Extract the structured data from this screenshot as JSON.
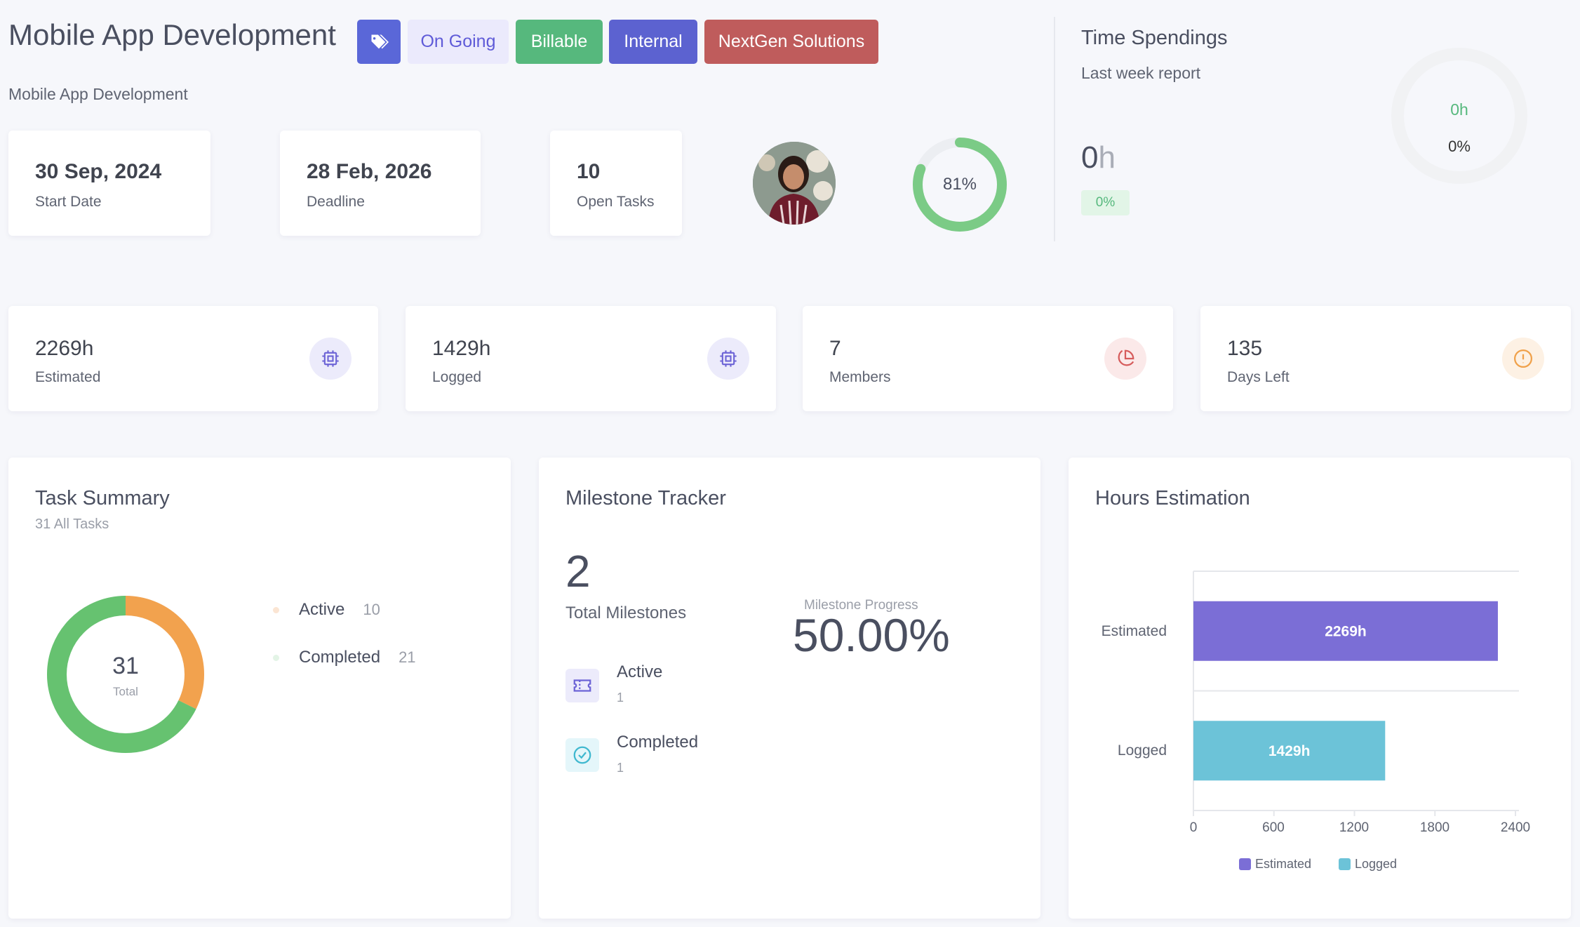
{
  "header": {
    "title": "Mobile App Development",
    "subtitle": "Mobile App Development",
    "tags": [
      "On Going",
      "Billable",
      "Internal",
      "NextGen Solutions"
    ]
  },
  "info_cards": [
    {
      "value": "30 Sep, 2024",
      "label": "Start Date"
    },
    {
      "value": "28 Feb, 2026",
      "label": "Deadline"
    },
    {
      "value": "10",
      "label": "Open Tasks"
    }
  ],
  "progress": {
    "value": 0.81,
    "text": "81%"
  },
  "time_spendings": {
    "title": "Time Spendings",
    "subtitle": "Last week report",
    "value_num": "0",
    "value_unit": "h",
    "badge": "0%",
    "ring_hours": "0h",
    "ring_percent": "0%"
  },
  "stats": [
    {
      "value": "2269h",
      "label": "Estimated",
      "icon": "cpu-icon",
      "color": "#6c63d6",
      "bg": "#ecebfb"
    },
    {
      "value": "1429h",
      "label": "Logged",
      "icon": "cpu-icon",
      "color": "#6c63d6",
      "bg": "#ecebfb"
    },
    {
      "value": "7",
      "label": "Members",
      "icon": "pie-chart-icon",
      "color": "#d65c5c",
      "bg": "#fbe9e9"
    },
    {
      "value": "135",
      "label": "Days Left",
      "icon": "alert-circle-icon",
      "color": "#f0a14a",
      "bg": "#fdf1e4"
    }
  ],
  "task_summary": {
    "title": "Task Summary",
    "subtitle": "31 All Tasks",
    "total": "31",
    "total_label": "Total",
    "items": [
      {
        "name": "Active",
        "count": "10",
        "value": 10,
        "color": "#f2a24e",
        "dot": "#fbe5d3"
      },
      {
        "name": "Completed",
        "count": "21",
        "value": 21,
        "color": "#66c270",
        "dot": "#e3f4e6"
      }
    ]
  },
  "milestones": {
    "title": "Milestone Tracker",
    "total": "2",
    "total_label": "Total Milestones",
    "progress_label": "Milestone Progress",
    "progress_value": "50.00%",
    "items": [
      {
        "name": "Active",
        "count": "1",
        "icon": "ticket-icon"
      },
      {
        "name": "Completed",
        "count": "1",
        "icon": "check-circle-icon"
      }
    ]
  },
  "hours_estimation": {
    "title": "Hours Estimation",
    "chart_data": {
      "type": "bar",
      "orientation": "horizontal",
      "categories": [
        "Estimated",
        "Logged"
      ],
      "values": [
        2269,
        1429
      ],
      "data_labels": [
        "2269h",
        "1429h"
      ],
      "colors": [
        "#7b6ed6",
        "#6cc3d8"
      ],
      "xlim": [
        0,
        2400
      ],
      "xticks": [
        "0",
        "600",
        "1200",
        "1800",
        "2400"
      ],
      "legend": [
        "Estimated",
        "Logged"
      ],
      "legend_position": "bottom"
    }
  }
}
